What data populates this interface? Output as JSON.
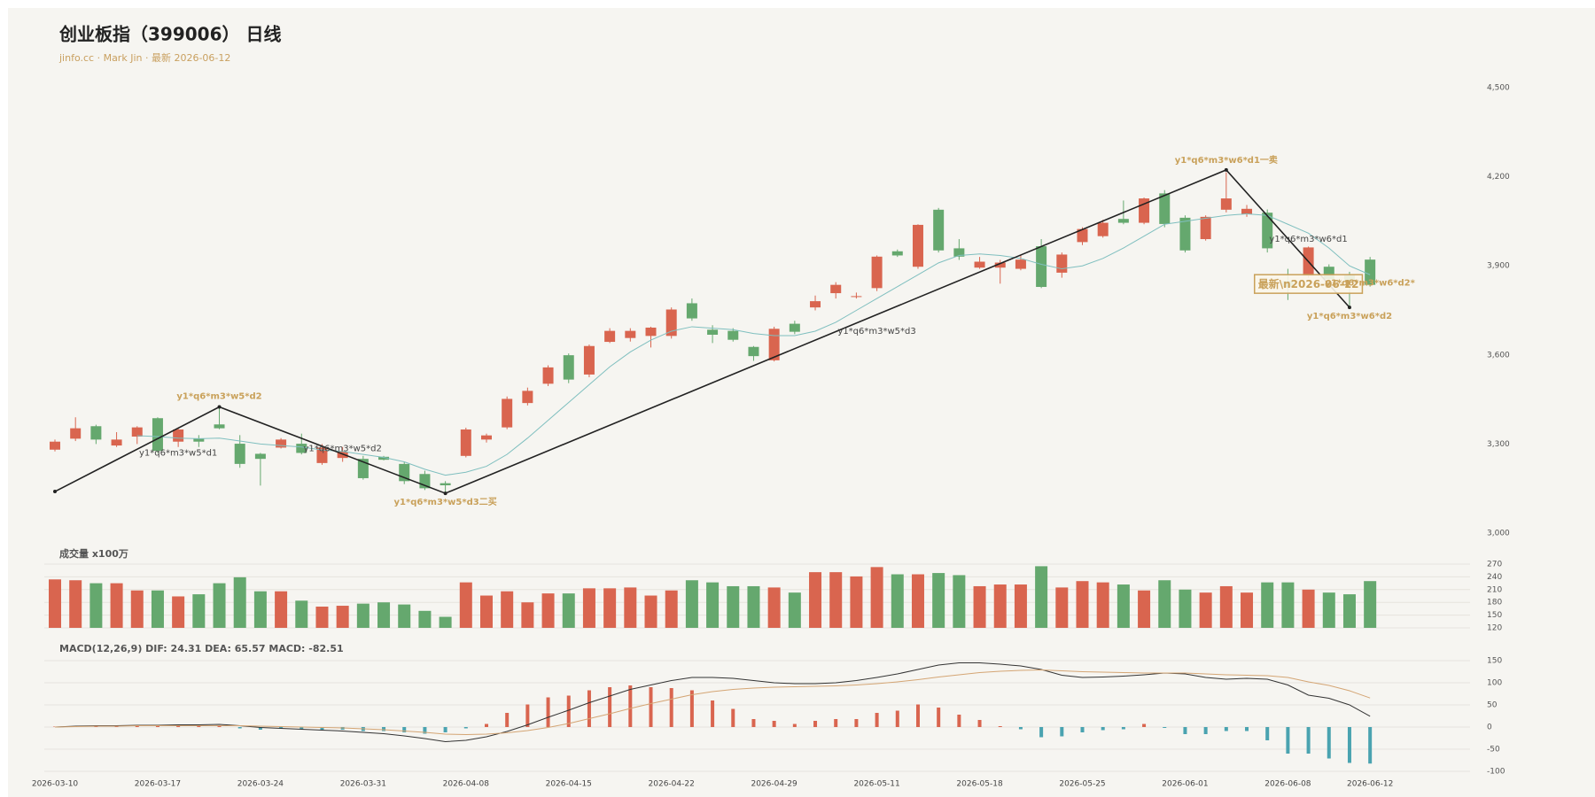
{
  "chart_data": [
    {
      "type": "candlestick",
      "title": "创业板指（399006） 日线",
      "subtitle": "jinfo.cc · Mark Jin · 最新 2026-06-12",
      "categories": [
        "2026-03-10",
        null,
        null,
        null,
        null,
        "2026-03-17",
        null,
        null,
        null,
        null,
        "2026-03-24",
        null,
        null,
        null,
        null,
        "2026-03-31",
        null,
        null,
        null,
        null,
        "2026-04-08",
        null,
        null,
        null,
        null,
        "2026-04-15",
        null,
        null,
        null,
        null,
        "2026-04-22",
        null,
        null,
        null,
        null,
        "2026-04-29",
        null,
        null,
        null,
        null,
        "2026-05-11",
        null,
        null,
        null,
        null,
        "2026-05-18",
        null,
        null,
        null,
        null,
        "2026-05-25",
        null,
        null,
        null,
        null,
        "2026-06-01",
        null,
        null,
        null,
        null,
        "2026-06-08",
        null,
        null,
        null,
        "2026-06-12"
      ],
      "open": [
        3281,
        3318,
        3360,
        3295,
        3325,
        3387,
        3308,
        3318,
        3366,
        3301,
        3267,
        3288,
        3301,
        3236,
        3253,
        3250,
        3257,
        3233,
        3199,
        3168,
        3260,
        3315,
        3356,
        3438,
        3503,
        3599,
        3534,
        3644,
        3657,
        3664,
        3664,
        3774,
        3685,
        3681,
        3627,
        3582,
        3705,
        3760,
        3808,
        3795,
        3825,
        3949,
        3897,
        4089,
        3959,
        3894,
        3894,
        3890,
        3966,
        3877,
        3980,
        4000,
        4058,
        4045,
        4144,
        4062,
        3990,
        4089,
        4075,
        4079,
        3849,
        3866,
        3897,
        3870,
        3921
      ],
      "high": [
        3315,
        3390,
        3365,
        3340,
        3360,
        3390,
        3355,
        3330,
        3425,
        3330,
        3270,
        3320,
        3335,
        3300,
        3290,
        3260,
        3260,
        3240,
        3210,
        3175,
        3355,
        3335,
        3460,
        3490,
        3565,
        3605,
        3635,
        3690,
        3690,
        3695,
        3760,
        3790,
        3700,
        3690,
        3630,
        3695,
        3715,
        3800,
        3845,
        3810,
        3935,
        3955,
        4040,
        4095,
        3990,
        3930,
        3920,
        3935,
        3990,
        3945,
        4030,
        4055,
        4120,
        4130,
        4155,
        4070,
        4070,
        4215,
        4105,
        4090,
        3890,
        3965,
        3905,
        3880,
        3930
      ],
      "low": [
        3275,
        3310,
        3300,
        3290,
        3300,
        3270,
        3290,
        3290,
        3350,
        3220,
        3160,
        3285,
        3265,
        3230,
        3240,
        3180,
        3245,
        3165,
        3145,
        3134,
        3255,
        3305,
        3350,
        3430,
        3495,
        3505,
        3525,
        3640,
        3645,
        3625,
        3655,
        3715,
        3640,
        3645,
        3580,
        3578,
        3670,
        3750,
        3790,
        3790,
        3815,
        3930,
        3890,
        3945,
        3920,
        3890,
        3840,
        3885,
        3825,
        3860,
        3970,
        3995,
        4040,
        4040,
        4030,
        3945,
        3985,
        4080,
        4065,
        3945,
        3785,
        3860,
        3850,
        3760,
        3830
      ],
      "close": [
        3308,
        3353,
        3315,
        3315,
        3356,
        3277,
        3349,
        3308,
        3353,
        3233,
        3250,
        3315,
        3270,
        3288,
        3274,
        3185,
        3247,
        3175,
        3151,
        3161,
        3349,
        3329,
        3452,
        3479,
        3558,
        3517,
        3630,
        3681,
        3681,
        3692,
        3753,
        3723,
        3668,
        3651,
        3596,
        3688,
        3678,
        3781,
        3836,
        3798,
        3931,
        3935,
        4038,
        3952,
        3931,
        3914,
        3911,
        3921,
        3829,
        3938,
        4024,
        4045,
        4045,
        4127,
        4041,
        3952,
        4065,
        4127,
        4092,
        3959,
        3829,
        3962,
        3856,
        3850,
        3836
      ],
      "up_color": "#d9654f",
      "down_color": "#65a86e",
      "ma": {
        "color": "#7fbfbf",
        "values": [
          null,
          null,
          null,
          null,
          3328,
          3325,
          3320,
          3318,
          3320,
          3310,
          3300,
          3295,
          3290,
          3280,
          3275,
          3265,
          3255,
          3240,
          3215,
          3195,
          3205,
          3225,
          3265,
          3320,
          3380,
          3440,
          3500,
          3560,
          3610,
          3650,
          3680,
          3695,
          3690,
          3685,
          3672,
          3665,
          3665,
          3680,
          3710,
          3750,
          3790,
          3830,
          3870,
          3910,
          3935,
          3940,
          3935,
          3925,
          3905,
          3890,
          3900,
          3925,
          3960,
          4000,
          4040,
          4050,
          4060,
          4070,
          4075,
          4070,
          4040,
          4010,
          3960,
          3900,
          3870
        ]
      },
      "zigzag": {
        "color": "#222222",
        "x": [
          0,
          8,
          19,
          57,
          63
        ],
        "values": [
          3140,
          3425,
          3134,
          4223,
          3760
        ]
      },
      "annotations": [
        {
          "text": "y1*q6*m3*w5*d2",
          "x": 8,
          "y": 3460,
          "color": "#c9a15a",
          "bold": true
        },
        {
          "text": "y1*q6*m3*w5*d1",
          "x": 6,
          "y": 3270,
          "color": "#444444",
          "bold": false
        },
        {
          "text": "y1*q6*m3*w5*d2",
          "x": 14,
          "y": 3285,
          "color": "#444444",
          "bold": false
        },
        {
          "text": "y1*q6*m3*w5*d3二买",
          "x": 19,
          "y": 3105,
          "color": "#c9a15a",
          "bold": true
        },
        {
          "text": "y1*q6*m3*w5*d3",
          "x": 40,
          "y": 3680,
          "color": "#444444",
          "bold": false
        },
        {
          "text": "y1*q6*m3*w6*d1一卖",
          "x": 57,
          "y": 4255,
          "color": "#c9a15a",
          "bold": true
        },
        {
          "text": "y1*q6*m3*w6*d1",
          "x": 61,
          "y": 3990,
          "color": "#444444",
          "bold": false
        },
        {
          "text": "最新\\n2026-06-12",
          "x": 61,
          "y": 3836,
          "color": "#c9a15a",
          "bold": true,
          "box": true
        },
        {
          "text": "y1*q6*m3*w6*d2*",
          "x": 64,
          "y": 3842,
          "color": "#c9a15a",
          "bold": true
        },
        {
          "text": "y1*q6*m3*w6*d2",
          "x": 63,
          "y": 3730,
          "color": "#c9a15a",
          "bold": true
        }
      ],
      "ylim": [
        3000,
        4500
      ],
      "yticks": [
        {
          "value": 3000,
          "label": "3,000"
        },
        {
          "value": 3300,
          "label": "3,300"
        },
        {
          "value": 3600,
          "label": "3,600"
        },
        {
          "value": 3900,
          "label": "3,900"
        },
        {
          "value": 4200,
          "label": "4,200"
        },
        {
          "value": 4500,
          "label": "4,500"
        }
      ],
      "grid": false
    },
    {
      "type": "bar",
      "title": "成交量 x100万",
      "values": [
        234,
        232,
        225,
        225,
        208,
        208,
        194,
        199,
        225,
        239,
        206,
        206,
        184,
        170,
        172,
        177,
        180,
        175,
        160,
        146,
        227,
        196,
        206,
        180,
        201,
        201,
        213,
        213,
        215,
        196,
        208,
        232,
        227,
        218,
        218,
        215,
        203,
        251,
        251,
        241,
        263,
        246,
        246,
        249,
        244,
        218,
        222,
        222,
        265,
        215,
        230,
        227,
        222,
        208,
        232,
        210,
        203,
        218,
        203,
        227,
        227,
        210,
        203,
        199,
        230
      ],
      "ylim": [
        120,
        270
      ],
      "yticks": [
        120,
        150,
        180,
        210,
        240,
        270
      ],
      "grid": true
    },
    {
      "type": "macd",
      "title": "MACD(12,26,9) DIF: 24.31 DEA: 65.57 MACD: -82.51",
      "series": [
        {
          "name": "MACD",
          "kind": "bar",
          "up_color": "#d9654f",
          "down_color": "#4aa3b0",
          "values": [
            1,
            2,
            1,
            1,
            3,
            2,
            3,
            2,
            3,
            -3,
            -6,
            -4,
            -5,
            -6,
            -6,
            -9,
            -9,
            -12,
            -15,
            -12,
            -3,
            7,
            32,
            51,
            67,
            71,
            83,
            90,
            94,
            90,
            88,
            83,
            60,
            41,
            18,
            14,
            7,
            14,
            18,
            18,
            32,
            37,
            51,
            44,
            28,
            16,
            2,
            -5,
            -23,
            -21,
            -12,
            -7,
            -5,
            7,
            -2,
            -16,
            -16,
            -9,
            -9,
            -30,
            -60,
            -60,
            -71,
            -81,
            -82.51
          ]
        },
        {
          "name": "DIF",
          "kind": "line",
          "color": "#333333",
          "values": [
            0,
            2,
            3,
            3,
            4,
            4,
            5,
            5,
            6,
            3,
            -1,
            -3,
            -5,
            -7,
            -9,
            -12,
            -15,
            -20,
            -26,
            -33,
            -30,
            -22,
            -10,
            5,
            22,
            38,
            55,
            70,
            85,
            95,
            105,
            112,
            112,
            110,
            105,
            100,
            98,
            98,
            100,
            105,
            112,
            120,
            130,
            140,
            145,
            145,
            142,
            138,
            130,
            117,
            112,
            113,
            115,
            118,
            122,
            120,
            112,
            108,
            110,
            108,
            95,
            72,
            65,
            50,
            24.31
          ]
        },
        {
          "name": "DEA",
          "kind": "line",
          "color": "#d4a574",
          "values": [
            0,
            1,
            2,
            2,
            3,
            3,
            3,
            3,
            3,
            3,
            2,
            1,
            0,
            -1,
            -2,
            -4,
            -6,
            -9,
            -12,
            -16,
            -17,
            -16,
            -13,
            -8,
            -1,
            8,
            19,
            30,
            42,
            53,
            63,
            73,
            80,
            85,
            88,
            90,
            91,
            92,
            93,
            95,
            98,
            102,
            107,
            113,
            118,
            123,
            126,
            128,
            129,
            127,
            125,
            124,
            123,
            122,
            122,
            122,
            120,
            118,
            117,
            116,
            112,
            102,
            94,
            82,
            65.57
          ]
        }
      ],
      "ylim": [
        -100,
        150
      ],
      "yticks": [
        -100,
        -50,
        0,
        50,
        100,
        150
      ],
      "grid": true
    }
  ]
}
